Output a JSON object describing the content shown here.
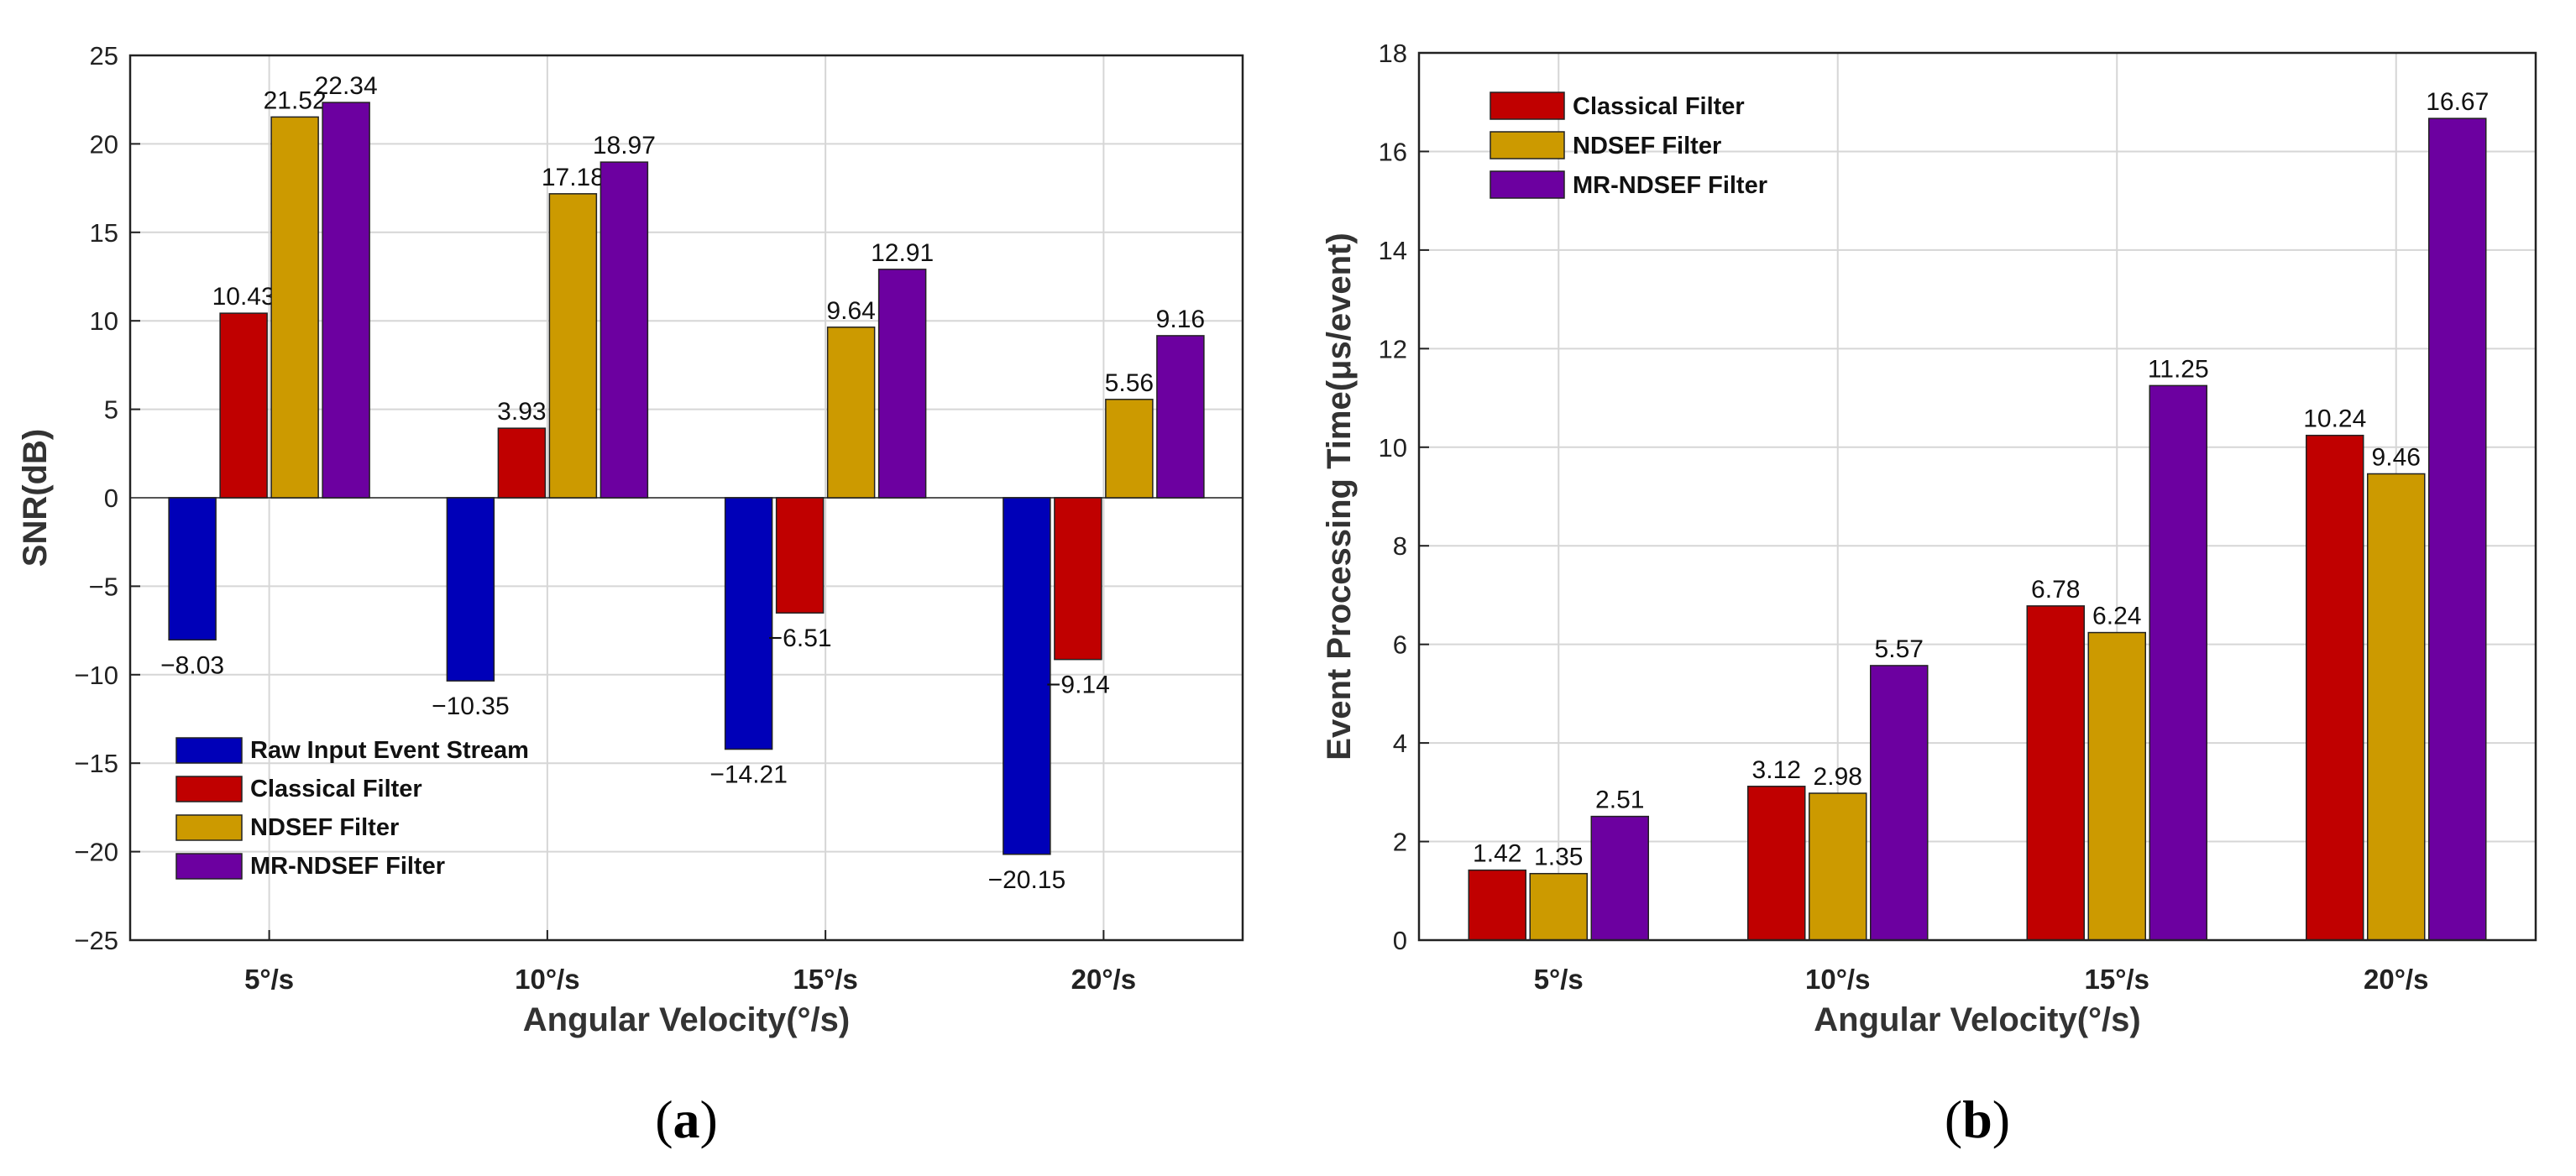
{
  "colors": {
    "raw": "#0000b8",
    "classical": "#c00000",
    "ndsef": "#cc9a00",
    "mr_ndsef": "#6c00a0"
  },
  "chart_data": [
    {
      "type": "bar",
      "panel": "(a)",
      "panel_letter": "a",
      "xlabel": "Angular Velocity(°/s)",
      "ylabel": "SNR(dB)",
      "ylim": [
        -25,
        25
      ],
      "yticks": [
        -25,
        -20,
        -15,
        -10,
        -5,
        0,
        5,
        10,
        15,
        20,
        25
      ],
      "grid": true,
      "legend_position": "bottom-left",
      "categories": [
        "5°/s",
        "10°/s",
        "15°/s",
        "20°/s"
      ],
      "series": [
        {
          "name": "Raw Input Event Stream",
          "color_key": "raw",
          "values": [
            -8.03,
            -10.35,
            -14.21,
            -20.15
          ],
          "labels": [
            "−8.03",
            "−10.35",
            "−14.21",
            "−20.15"
          ]
        },
        {
          "name": "Classical Filter",
          "color_key": "classical",
          "values": [
            10.43,
            3.93,
            -6.51,
            -9.14
          ],
          "labels": [
            "10.43",
            "3.93",
            "−6.51",
            "−9.14"
          ]
        },
        {
          "name": "NDSEF Filter",
          "color_key": "ndsef",
          "values": [
            21.52,
            17.18,
            9.64,
            5.56
          ],
          "labels": [
            "21.52",
            "17.18",
            "9.64",
            "5.56"
          ]
        },
        {
          "name": "MR-NDSEF Filter",
          "color_key": "mr_ndsef",
          "values": [
            22.34,
            18.97,
            12.91,
            9.16
          ],
          "labels": [
            "22.34",
            "18.97",
            "12.91",
            "9.16"
          ]
        }
      ]
    },
    {
      "type": "bar",
      "panel": "(b)",
      "panel_letter": "b",
      "xlabel": "Angular Velocity(°/s)",
      "ylabel": "Event Processing Time(μs/event)",
      "ylim": [
        0,
        18
      ],
      "yticks": [
        0,
        2,
        4,
        6,
        8,
        10,
        12,
        14,
        16,
        18
      ],
      "grid": true,
      "legend_position": "top-left",
      "categories": [
        "5°/s",
        "10°/s",
        "15°/s",
        "20°/s"
      ],
      "series": [
        {
          "name": "Classical Filter",
          "color_key": "classical",
          "values": [
            1.42,
            3.12,
            6.78,
            10.24
          ],
          "labels": [
            "1.42",
            "3.12",
            "6.78",
            "10.24"
          ]
        },
        {
          "name": "NDSEF Filter",
          "color_key": "ndsef",
          "values": [
            1.35,
            2.98,
            6.24,
            9.46
          ],
          "labels": [
            "1.35",
            "2.98",
            "6.24",
            "9.46"
          ]
        },
        {
          "name": "MR-NDSEF Filter",
          "color_key": "mr_ndsef",
          "values": [
            2.51,
            5.57,
            11.25,
            16.67
          ],
          "labels": [
            "2.51",
            "5.57",
            "11.25",
            "16.67"
          ]
        }
      ]
    }
  ]
}
